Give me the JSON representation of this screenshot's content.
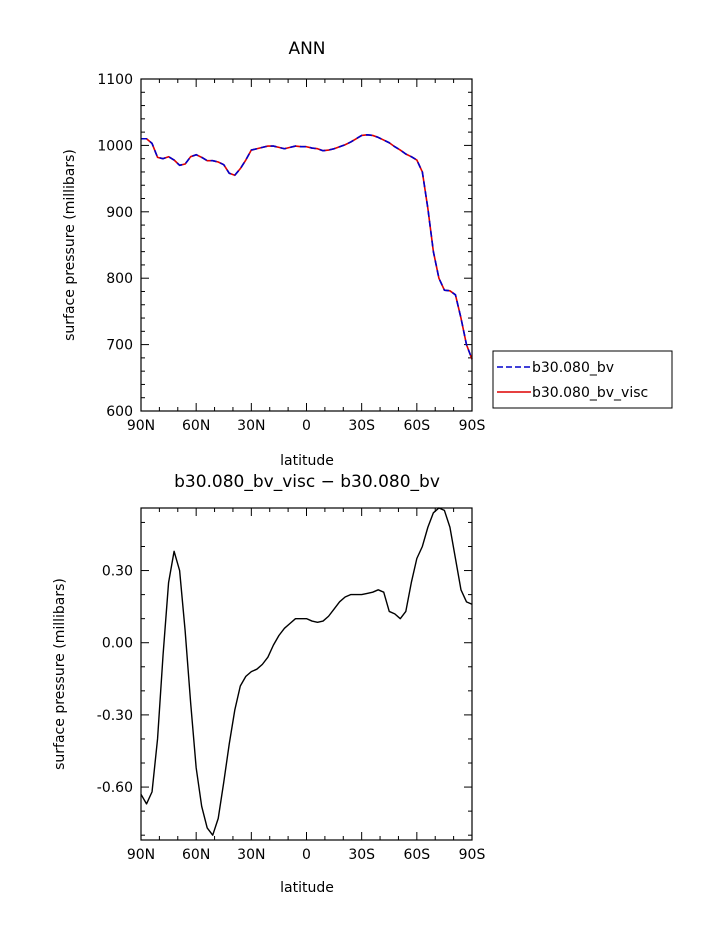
{
  "figure": {
    "top_title": "ANN",
    "bottom_title": "b30.080_bv_visc − b30.080_bv"
  },
  "chart_data": [
    {
      "type": "line",
      "title": "ANN",
      "xlabel": "latitude",
      "ylabel": "surface pressure (millibars)",
      "x_tick_labels": [
        "90N",
        "60N",
        "30N",
        "0",
        "30S",
        "60S",
        "90S"
      ],
      "x_tick_values": [
        90,
        60,
        30,
        0,
        -30,
        -60,
        -90
      ],
      "xlim": [
        90,
        -90
      ],
      "ylim": [
        600,
        1100
      ],
      "y_tick_values": [
        600,
        700,
        800,
        900,
        1000,
        1100
      ],
      "y_tick_labels": [
        "600",
        "700",
        "800",
        "900",
        "1000",
        "1100"
      ],
      "legend_position": "right",
      "colors": {
        "dashed": "#0000cc",
        "solid": "#dd0000"
      },
      "x": [
        90,
        87,
        84,
        81,
        78,
        75,
        72,
        69,
        66,
        63,
        60,
        57,
        54,
        51,
        48,
        45,
        42,
        39,
        36,
        33,
        30,
        27,
        24,
        21,
        18,
        15,
        12,
        9,
        6,
        3,
        0,
        -3,
        -6,
        -9,
        -12,
        -15,
        -18,
        -21,
        -24,
        -27,
        -30,
        -33,
        -36,
        -39,
        -42,
        -45,
        -48,
        -51,
        -54,
        -57,
        -60,
        -63,
        -66,
        -69,
        -72,
        -75,
        -78,
        -81,
        -84,
        -87,
        -90
      ],
      "series": [
        {
          "name": "b30.080_bv",
          "style": "dashed",
          "values": [
            1010,
            1010,
            1003,
            982,
            980,
            983,
            978,
            970,
            972,
            983,
            986,
            982,
            977,
            977,
            975,
            971,
            958,
            955,
            965,
            978,
            993,
            995,
            997,
            999,
            999,
            997,
            995,
            997,
            999,
            998,
            998,
            996,
            995,
            992,
            993,
            995,
            998,
            1001,
            1005,
            1010,
            1015,
            1016,
            1015,
            1012,
            1008,
            1004,
            998,
            993,
            987,
            983,
            978,
            960,
            905,
            840,
            800,
            782,
            781,
            775,
            740,
            700,
            678
          ]
        },
        {
          "name": "b30.080_bv_visc",
          "style": "solid",
          "values": [
            1010,
            1010,
            1003,
            982,
            980,
            983,
            978,
            970,
            972,
            983,
            986,
            982,
            977,
            977,
            975,
            971,
            958,
            955,
            965,
            978,
            993,
            995,
            997,
            999,
            999,
            997,
            995,
            997,
            999,
            998,
            998,
            996,
            995,
            992,
            993,
            995,
            998,
            1001,
            1005,
            1010,
            1015,
            1016,
            1015,
            1012,
            1008,
            1004,
            998,
            993,
            987,
            983,
            978,
            960,
            905,
            840,
            800,
            782,
            781,
            775,
            740,
            700,
            678
          ]
        }
      ]
    },
    {
      "type": "line",
      "title": "b30.080_bv_visc − b30.080_bv",
      "xlabel": "latitude",
      "ylabel": "surface pressure (millibars)",
      "x_tick_labels": [
        "90N",
        "60N",
        "30N",
        "0",
        "30S",
        "60S",
        "90S"
      ],
      "x_tick_values": [
        90,
        60,
        30,
        0,
        -30,
        -60,
        -90
      ],
      "xlim": [
        90,
        -90
      ],
      "ylim": [
        -0.82,
        0.56
      ],
      "y_tick_values": [
        -0.6,
        -0.3,
        0.0,
        0.3
      ],
      "y_tick_labels": [
        "-0.60",
        "-0.30",
        "0.00",
        "0.30"
      ],
      "x": [
        90,
        87,
        84,
        81,
        78,
        75,
        72,
        69,
        66,
        63,
        60,
        57,
        54,
        51,
        48,
        45,
        42,
        39,
        36,
        33,
        30,
        27,
        24,
        21,
        18,
        15,
        12,
        9,
        6,
        3,
        0,
        -3,
        -6,
        -9,
        -12,
        -15,
        -18,
        -21,
        -24,
        -27,
        -30,
        -33,
        -36,
        -39,
        -42,
        -45,
        -48,
        -51,
        -54,
        -57,
        -60,
        -63,
        -66,
        -69,
        -72,
        -75,
        -78,
        -81,
        -84,
        -87,
        -90
      ],
      "series": [
        {
          "values": [
            -0.63,
            -0.67,
            -0.62,
            -0.4,
            -0.05,
            0.25,
            0.38,
            0.3,
            0.05,
            -0.25,
            -0.52,
            -0.68,
            -0.77,
            -0.8,
            -0.73,
            -0.58,
            -0.42,
            -0.28,
            -0.18,
            -0.14,
            -0.12,
            -0.11,
            -0.09,
            -0.06,
            -0.01,
            0.03,
            0.06,
            0.08,
            0.1,
            0.1,
            0.1,
            0.09,
            0.085,
            0.09,
            0.11,
            0.14,
            0.17,
            0.19,
            0.2,
            0.2,
            0.2,
            0.205,
            0.21,
            0.22,
            0.21,
            0.13,
            0.12,
            0.1,
            0.13,
            0.25,
            0.35,
            0.4,
            0.48,
            0.54,
            0.56,
            0.55,
            0.48,
            0.35,
            0.22,
            0.17,
            0.16
          ]
        }
      ]
    }
  ]
}
